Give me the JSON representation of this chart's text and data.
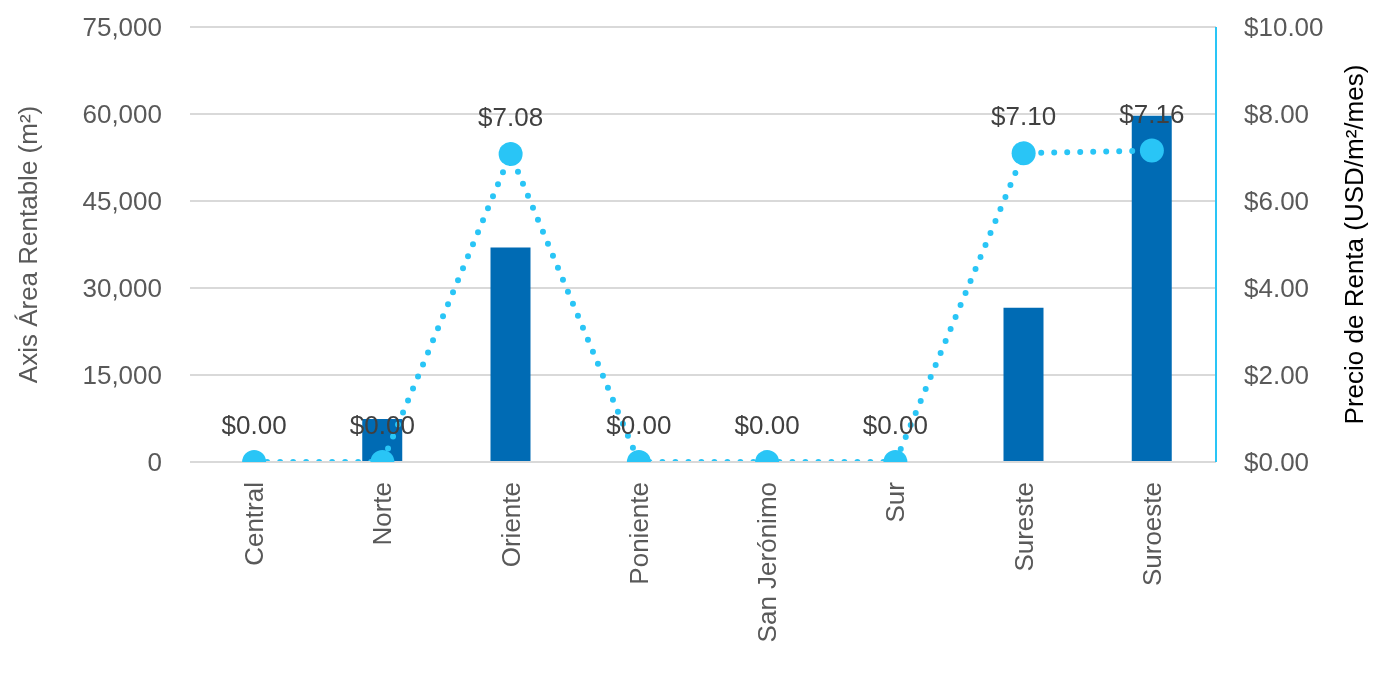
{
  "chart_data": {
    "type": "bar",
    "ylabel": "Axis Área Rentable (m²)",
    "y2label": "Precio de Renta (USD/m²/mes)",
    "categories": [
      "Central",
      "Norte",
      "Oriente",
      "Poniente",
      "San Jerónimo",
      "Sur",
      "Sureste",
      "Suroeste"
    ],
    "series": [
      {
        "color": "#006bb4",
        "axis": "y",
        "values": [
          0,
          7400,
          37000,
          0,
          0,
          0,
          26600,
          59700
        ]
      },
      {
        "type": "line",
        "color": "#29c5f6",
        "axis": "y2",
        "marker": "circle",
        "line_style": "dotted",
        "values": [
          0,
          0,
          7.08,
          0,
          0,
          0,
          7.1,
          7.16
        ],
        "value_labels": [
          "$0.00",
          "$0.00",
          "$7.08",
          "$0.00",
          "$0.00",
          "$0.00",
          "$7.10",
          "$7.16"
        ]
      }
    ],
    "ylim": [
      0,
      75000
    ],
    "yticks": [
      {
        "value": 0,
        "label": "0"
      },
      {
        "value": 15000,
        "label": "15,000"
      },
      {
        "value": 30000,
        "label": "30,000"
      },
      {
        "value": 45000,
        "label": "45,000"
      },
      {
        "value": 60000,
        "label": "60,000"
      },
      {
        "value": 75000,
        "label": "75,000"
      }
    ],
    "y2lim": [
      0,
      10
    ],
    "y2ticks": [
      {
        "value": 0,
        "label": "$0.00"
      },
      {
        "value": 2,
        "label": "$2.00"
      },
      {
        "value": 4,
        "label": "$4.00"
      },
      {
        "value": 6,
        "label": "$6.00"
      },
      {
        "value": 8,
        "label": "$8.00"
      },
      {
        "value": 10,
        "label": "$10.00"
      }
    ],
    "grid": "y",
    "legend": false
  }
}
